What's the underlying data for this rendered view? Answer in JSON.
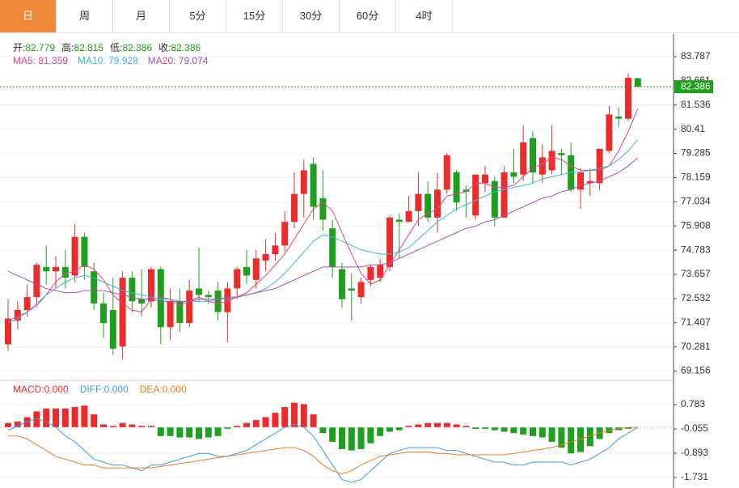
{
  "tabs": [
    "日",
    "周",
    "月",
    "5分",
    "15分",
    "30分",
    "60分",
    "4时"
  ],
  "active_tab": 0,
  "readout": [
    {
      "label": "开:",
      "value": "82.779"
    },
    {
      "label": "高:",
      "value": "82.815"
    },
    {
      "label": "低:",
      "value": "82.386"
    },
    {
      "label": "收:",
      "value": "82.386"
    }
  ],
  "ma_readout": [
    "MA5: 81.359",
    "MA10: 79.928",
    "MA20: 79.074"
  ],
  "macd_readout": [
    "MACD:0.000",
    "DIFF:0.000",
    "DEA:0.000"
  ],
  "chart_data": [
    {
      "type": "candlestick",
      "up_color": "#ee2b2b",
      "down_color": "#1ea01e",
      "open": [
        70.4,
        71.5,
        72.0,
        72.6,
        74.0,
        73.8,
        74.0,
        73.6,
        75.4,
        73.8,
        72.3,
        72.0,
        70.3,
        73.5,
        72.5,
        72.4,
        73.9,
        71.2,
        72.4,
        71.4,
        73.0,
        72.7,
        72.9,
        71.9,
        73.0,
        74.0,
        73.4,
        74.3,
        74.6,
        75.0,
        76.1,
        77.4,
        78.8,
        77.2,
        75.8,
        73.9,
        73.0,
        72.6,
        73.4,
        73.5,
        74.0,
        76.2,
        76.1,
        76.6,
        77.4,
        76.3,
        77.6,
        78.4,
        77.6,
        76.4,
        77.9,
        78.0,
        76.3,
        78.4,
        78.3,
        80.0,
        78.3,
        78.5,
        79.3,
        79.2,
        77.6,
        77.9,
        77.9,
        79.4,
        81.0,
        80.9,
        82.779
      ],
      "close": [
        71.6,
        72.0,
        72.6,
        74.1,
        73.8,
        74.0,
        73.5,
        75.4,
        74.0,
        72.3,
        71.4,
        70.2,
        73.5,
        72.4,
        72.3,
        73.9,
        71.2,
        72.4,
        71.4,
        72.9,
        72.7,
        72.6,
        71.9,
        73.0,
        73.9,
        73.6,
        74.4,
        74.6,
        75.0,
        76.1,
        77.4,
        78.5,
        76.8,
        76.2,
        74.0,
        72.5,
        72.9,
        73.3,
        74.0,
        74.1,
        76.3,
        76.1,
        76.6,
        77.4,
        76.3,
        77.6,
        79.2,
        77.0,
        77.5,
        78.3,
        78.3,
        76.3,
        78.4,
        78.2,
        79.8,
        78.4,
        79.1,
        79.4,
        79.2,
        77.6,
        78.4,
        78.0,
        79.5,
        81.1,
        80.9,
        82.8,
        82.386
      ],
      "high": [
        72.5,
        72.4,
        73.2,
        74.2,
        75.0,
        74.5,
        74.8,
        76.0,
        75.6,
        74.2,
        72.8,
        73.5,
        73.8,
        73.8,
        73.9,
        74.0,
        74.0,
        73.0,
        73.0,
        73.4,
        74.9,
        72.9,
        73.3,
        73.3,
        74.0,
        74.8,
        74.8,
        75.3,
        75.6,
        76.6,
        78.4,
        79.0,
        79.1,
        78.5,
        76.2,
        74.2,
        73.7,
        73.5,
        74.1,
        74.4,
        76.4,
        76.5,
        77.3,
        78.4,
        78.0,
        78.4,
        79.3,
        78.5,
        77.8,
        78.3,
        78.7,
        78.2,
        78.7,
        79.5,
        80.6,
        80.3,
        79.7,
        80.6,
        79.5,
        79.8,
        78.6,
        78.6,
        79.5,
        81.5,
        81.4,
        83.0,
        82.815
      ],
      "low": [
        70.1,
        71.1,
        71.7,
        72.2,
        73.2,
        73.0,
        73.0,
        73.3,
        73.4,
        72.0,
        70.7,
        69.9,
        69.7,
        71.9,
        71.7,
        72.1,
        70.4,
        70.6,
        71.0,
        71.2,
        72.4,
        72.3,
        71.5,
        70.5,
        72.5,
        73.2,
        73.0,
        73.8,
        74.3,
        74.7,
        75.8,
        76.3,
        76.2,
        75.7,
        73.5,
        72.1,
        71.5,
        72.3,
        73.1,
        73.3,
        73.8,
        74.4,
        76.1,
        75.9,
        76.1,
        75.6,
        77.4,
        76.6,
        76.3,
        76.2,
        77.5,
        75.9,
        76.3,
        77.9,
        78.0,
        77.9,
        77.9,
        78.3,
        78.3,
        77.5,
        76.7,
        77.3,
        77.6,
        79.3,
        80.5,
        80.8,
        82.386
      ],
      "series": [
        {
          "name": "MA5",
          "color": "#e0448b",
          "values": [
            71.5,
            71.7,
            71.9,
            72.2,
            72.7,
            73.3,
            73.7,
            73.8,
            74.1,
            73.9,
            73.4,
            72.7,
            72.3,
            72.0,
            71.9,
            72.5,
            72.6,
            72.5,
            72.2,
            72.4,
            72.6,
            72.4,
            72.3,
            72.4,
            72.6,
            72.8,
            73.2,
            73.6,
            74.1,
            74.6,
            75.3,
            76.0,
            76.7,
            77.0,
            76.6,
            75.6,
            74.6,
            73.7,
            73.2,
            73.4,
            74.1,
            74.8,
            75.5,
            76.2,
            76.5,
            76.7,
            77.3,
            77.4,
            77.5,
            77.9,
            77.9,
            77.7,
            77.7,
            77.8,
            78.2,
            78.6,
            78.8,
            79.1,
            79.0,
            78.7,
            78.5,
            78.5,
            78.5,
            78.7,
            79.4,
            80.3,
            81.359
          ]
        },
        {
          "name": "MA10",
          "color": "#3ab8d8",
          "values": [
            71.4,
            71.6,
            71.9,
            72.3,
            72.7,
            73.0,
            73.3,
            73.5,
            73.6,
            73.5,
            73.3,
            73.1,
            72.9,
            72.8,
            72.7,
            72.6,
            72.5,
            72.5,
            72.4,
            72.4,
            72.4,
            72.4,
            72.5,
            72.5,
            72.6,
            72.7,
            72.8,
            73.0,
            73.3,
            73.7,
            74.2,
            74.7,
            75.2,
            75.5,
            75.4,
            75.2,
            75.0,
            74.8,
            74.7,
            74.6,
            74.6,
            74.7,
            74.9,
            75.3,
            75.7,
            76.1,
            76.4,
            76.7,
            76.9,
            77.1,
            77.3,
            77.5,
            77.6,
            77.7,
            77.8,
            77.9,
            78.1,
            78.2,
            78.3,
            78.4,
            78.4,
            78.5,
            78.6,
            78.7,
            79.0,
            79.4,
            79.928
          ]
        },
        {
          "name": "MA20",
          "color": "#b04db0",
          "values": [
            73.8,
            73.6,
            73.4,
            73.2,
            73.0,
            72.9,
            72.8,
            72.8,
            72.9,
            72.9,
            72.9,
            72.8,
            72.7,
            72.6,
            72.5,
            72.5,
            72.4,
            72.4,
            72.4,
            72.4,
            72.5,
            72.5,
            72.5,
            72.6,
            72.6,
            72.7,
            72.8,
            72.9,
            73.0,
            73.2,
            73.4,
            73.6,
            73.8,
            74.0,
            74.0,
            74.0,
            74.0,
            74.0,
            74.1,
            74.1,
            74.2,
            74.4,
            74.6,
            74.8,
            75.0,
            75.2,
            75.4,
            75.6,
            75.8,
            75.9,
            76.1,
            76.2,
            76.4,
            76.6,
            76.8,
            77.0,
            77.2,
            77.3,
            77.5,
            77.6,
            77.8,
            77.9,
            78.0,
            78.2,
            78.4,
            78.7,
            79.074
          ]
        }
      ],
      "last_price": 82.386,
      "ylim": [
        68.8,
        84.84
      ],
      "yticks": [
        83.787,
        82.661,
        81.536,
        80.41,
        79.285,
        78.159,
        77.034,
        75.908,
        74.783,
        73.657,
        72.532,
        71.407,
        70.281,
        69.156
      ],
      "grid": true
    },
    {
      "type": "macd",
      "up_color": "#ee2b2b",
      "down_color": "#1ea01e",
      "values": [
        0.15,
        0.2,
        0.35,
        0.55,
        0.65,
        0.65,
        0.65,
        0.7,
        0.75,
        0.45,
        0.1,
        0.05,
        0.15,
        0.1,
        0.05,
        0.05,
        -0.3,
        -0.3,
        -0.35,
        -0.35,
        -0.4,
        -0.35,
        -0.3,
        -0.05,
        0.05,
        0.15,
        0.25,
        0.35,
        0.5,
        0.7,
        0.85,
        0.8,
        0.45,
        -0.2,
        -0.5,
        -0.75,
        -0.8,
        -0.75,
        -0.55,
        -0.3,
        -0.15,
        -0.1,
        0.05,
        0.1,
        0.15,
        0.15,
        0.15,
        0.1,
        0.05,
        -0.05,
        -0.05,
        -0.1,
        -0.15,
        -0.2,
        -0.25,
        -0.3,
        -0.35,
        -0.5,
        -0.7,
        -0.9,
        -0.85,
        -0.65,
        -0.4,
        -0.2,
        -0.1,
        -0.05,
        0
      ],
      "series": [
        {
          "name": "DIFF",
          "color": "#3a9ee0",
          "values": [
            -0.1,
            0.05,
            0.2,
            0.3,
            0.2,
            0.0,
            -0.3,
            -0.5,
            -0.8,
            -1.1,
            -1.2,
            -1.3,
            -1.3,
            -1.4,
            -1.5,
            -1.3,
            -1.3,
            -1.2,
            -1.1,
            -1.0,
            -0.9,
            -0.9,
            -1.0,
            -1.0,
            -0.9,
            -0.8,
            -0.6,
            -0.4,
            -0.2,
            0.0,
            0.1,
            0.0,
            -0.3,
            -0.8,
            -1.3,
            -1.8,
            -1.9,
            -1.8,
            -1.5,
            -1.2,
            -0.9,
            -0.8,
            -0.7,
            -0.7,
            -0.7,
            -0.7,
            -0.8,
            -0.8,
            -0.9,
            -1.0,
            -1.1,
            -1.2,
            -1.2,
            -1.3,
            -1.3,
            -1.2,
            -1.2,
            -1.2,
            -1.2,
            -1.3,
            -1.2,
            -1.1,
            -0.9,
            -0.7,
            -0.4,
            -0.2,
            0
          ]
        },
        {
          "name": "DEA",
          "color": "#f07c1e",
          "values": [
            -0.3,
            -0.3,
            -0.4,
            -0.6,
            -0.8,
            -1.0,
            -1.1,
            -1.2,
            -1.3,
            -1.3,
            -1.4,
            -1.4,
            -1.4,
            -1.4,
            -1.4,
            -1.4,
            -1.35,
            -1.3,
            -1.25,
            -1.2,
            -1.15,
            -1.1,
            -1.05,
            -1.0,
            -0.95,
            -0.9,
            -0.85,
            -0.8,
            -0.75,
            -0.7,
            -0.7,
            -0.8,
            -1.0,
            -1.3,
            -1.5,
            -1.6,
            -1.5,
            -1.3,
            -1.15,
            -1.0,
            -0.95,
            -0.9,
            -0.85,
            -0.85,
            -0.85,
            -0.9,
            -0.9,
            -0.95,
            -0.95,
            -0.95,
            -0.95,
            -0.95,
            -0.95,
            -0.9,
            -0.85,
            -0.8,
            -0.75,
            -0.7,
            -0.6,
            -0.5,
            -0.4,
            -0.3,
            -0.2,
            -0.1,
            -0.05,
            0,
            0
          ]
        }
      ],
      "ylim": [
        -2.01,
        1.593
      ],
      "yticks": [
        0.783,
        -0.055,
        -0.893,
        -1.731
      ],
      "grid": true
    }
  ]
}
